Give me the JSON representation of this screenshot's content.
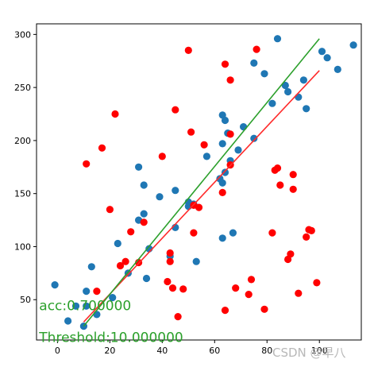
{
  "chart_data": {
    "type": "scatter",
    "title": "",
    "xlabel": "",
    "ylabel": "",
    "xlim": [
      -8,
      116
    ],
    "ylim": [
      12,
      310
    ],
    "xticks": [
      0,
      20,
      40,
      60,
      80,
      100
    ],
    "yticks": [
      50,
      100,
      150,
      200,
      250,
      300
    ],
    "xtick_labels": [
      "0",
      "20",
      "40",
      "60",
      "80",
      "100"
    ],
    "ytick_labels": [
      "50",
      "100",
      "150",
      "200",
      "250",
      "300"
    ],
    "grid": false,
    "colors": {
      "blue": "#1f77b4",
      "red": "#ff0000",
      "green": "#2ca02c",
      "line_red": "#ff2a2a",
      "annotation": "#2ca02c"
    },
    "series": [
      {
        "color": "blue",
        "points": [
          [
            -1,
            64
          ],
          [
            4,
            30
          ],
          [
            7,
            44
          ],
          [
            10,
            25
          ],
          [
            11,
            58
          ],
          [
            11,
            44
          ],
          [
            13,
            81
          ],
          [
            15,
            36
          ],
          [
            21,
            52
          ],
          [
            23,
            103
          ],
          [
            27,
            75
          ],
          [
            31,
            175
          ],
          [
            31,
            125
          ],
          [
            33,
            131
          ],
          [
            33,
            158
          ],
          [
            34,
            70
          ],
          [
            35,
            98
          ],
          [
            39,
            147
          ],
          [
            43,
            91
          ],
          [
            45,
            153
          ],
          [
            45,
            118
          ],
          [
            50,
            138
          ],
          [
            50,
            142
          ],
          [
            52,
            140
          ],
          [
            53,
            86
          ],
          [
            57,
            185
          ],
          [
            62,
            164
          ],
          [
            63,
            108
          ],
          [
            63,
            160
          ],
          [
            63,
            197
          ],
          [
            64,
            170
          ],
          [
            63,
            224
          ],
          [
            64,
            219
          ],
          [
            65,
            207
          ],
          [
            66,
            181
          ],
          [
            67,
            113
          ],
          [
            69,
            191
          ],
          [
            71,
            213
          ],
          [
            75,
            202
          ],
          [
            75,
            273
          ],
          [
            79,
            263
          ],
          [
            82,
            235
          ],
          [
            84,
            296
          ],
          [
            87,
            252
          ],
          [
            88,
            246
          ],
          [
            92,
            241
          ],
          [
            94,
            257
          ],
          [
            95,
            230
          ],
          [
            101,
            284
          ],
          [
            103,
            278
          ],
          [
            107,
            267
          ],
          [
            113,
            290
          ]
        ]
      },
      {
        "color": "red",
        "points": [
          [
            11,
            178
          ],
          [
            15,
            58
          ],
          [
            17,
            193
          ],
          [
            20,
            135
          ],
          [
            22,
            225
          ],
          [
            24,
            82
          ],
          [
            26,
            86
          ],
          [
            28,
            114
          ],
          [
            31,
            85
          ],
          [
            33,
            123
          ],
          [
            40,
            185
          ],
          [
            42,
            67
          ],
          [
            43,
            86
          ],
          [
            43,
            94
          ],
          [
            44,
            61
          ],
          [
            45,
            229
          ],
          [
            46,
            34
          ],
          [
            48,
            60
          ],
          [
            50,
            285
          ],
          [
            51,
            208
          ],
          [
            52,
            113
          ],
          [
            52,
            139
          ],
          [
            54,
            137
          ],
          [
            56,
            196
          ],
          [
            63,
            151
          ],
          [
            64,
            272
          ],
          [
            64,
            40
          ],
          [
            66,
            257
          ],
          [
            66,
            177
          ],
          [
            66,
            206
          ],
          [
            68,
            61
          ],
          [
            73,
            55
          ],
          [
            74,
            69
          ],
          [
            76,
            286
          ],
          [
            79,
            41
          ],
          [
            82,
            113
          ],
          [
            83,
            172
          ],
          [
            84,
            174
          ],
          [
            85,
            158
          ],
          [
            88,
            88
          ],
          [
            89,
            93
          ],
          [
            90,
            154
          ],
          [
            90,
            168
          ],
          [
            92,
            56
          ],
          [
            95,
            109
          ],
          [
            96,
            116
          ],
          [
            97,
            115
          ],
          [
            99,
            66
          ]
        ]
      }
    ],
    "lines": [
      {
        "color": "line_red",
        "x": [
          10,
          100
        ],
        "y": [
          29,
          266
        ]
      },
      {
        "color": "green",
        "x": [
          10,
          100
        ],
        "y": [
          25,
          296
        ]
      }
    ],
    "annotations": [
      {
        "text": "acc:0.700000",
        "x": -7,
        "y": 40
      },
      {
        "text": "Threshold:10.000000",
        "x": -7,
        "y": 10
      }
    ],
    "watermark": "CSDN @早八"
  }
}
